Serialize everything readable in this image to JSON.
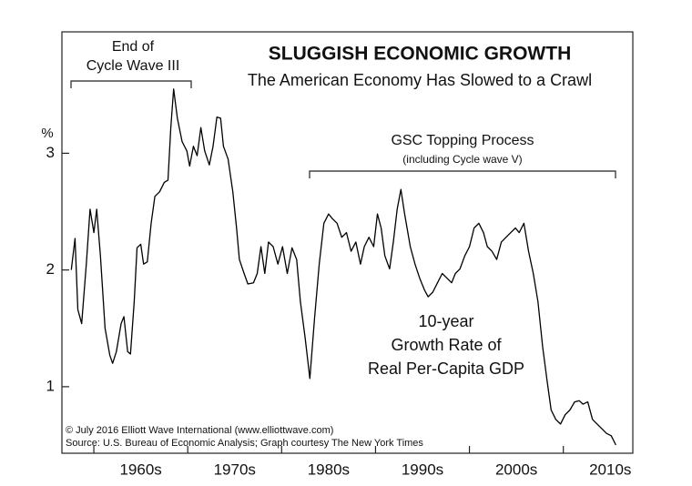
{
  "chart_data": {
    "type": "line",
    "title": "SLUGGISH ECONOMIC GROWTH",
    "subtitle": "The American Economy Has Slowed to a Crawl",
    "y_axis_label": "%",
    "annotations": {
      "wave_end": [
        "End of",
        "Cycle Wave III"
      ],
      "topping": "GSC Topping Process",
      "topping_note": "(including Cycle wave V)",
      "series_label": [
        "10-year",
        "Growth Rate of",
        "Real Per-Capita GDP"
      ],
      "credits": [
        "© July 2016 Elliott Wave International (www.elliottwave.com)",
        "Source: U.S. Bureau of Economic Analysis; Graph courtesy The New York Times"
      ]
    },
    "color": "#000000",
    "xlim": [
      1956.6,
      2017.4
    ],
    "ylim": [
      0.43,
      4.04
    ],
    "yticks": [
      1,
      2,
      3
    ],
    "xticks": [
      {
        "value": 1965,
        "label": "1960s"
      },
      {
        "value": 1975,
        "label": "1970s"
      },
      {
        "value": 1985,
        "label": "1980s"
      },
      {
        "value": 1995,
        "label": "1990s"
      },
      {
        "value": 2005,
        "label": "2000s"
      },
      {
        "value": 2015,
        "label": "2010s"
      }
    ],
    "x_minor_ticks": [
      1960,
      1970,
      1980,
      1990,
      2000,
      2010
    ],
    "x": [
      1957.6,
      1958.0,
      1958.3,
      1958.7,
      1959.2,
      1959.6,
      1960.0,
      1960.3,
      1960.7,
      1961.2,
      1961.7,
      1962.0,
      1962.4,
      1962.9,
      1963.2,
      1963.6,
      1963.9,
      1964.3,
      1964.6,
      1965.0,
      1965.3,
      1965.7,
      1966.1,
      1966.5,
      1967.0,
      1967.5,
      1967.9,
      1968.2,
      1968.5,
      1968.9,
      1969.4,
      1969.9,
      1970.2,
      1970.6,
      1971.0,
      1971.4,
      1971.8,
      1972.3,
      1972.7,
      1973.1,
      1973.5,
      1973.8,
      1974.3,
      1974.8,
      1975.2,
      1975.5,
      1976.0,
      1976.4,
      1977.0,
      1977.4,
      1977.8,
      1978.2,
      1978.6,
      1979.1,
      1979.6,
      1980.1,
      1980.6,
      1981.1,
      1981.6,
      1982.0,
      1982.5,
      1983.0,
      1983.5,
      1984.0,
      1984.5,
      1985.0,
      1985.4,
      1985.9,
      1986.4,
      1986.9,
      1987.4,
      1987.9,
      1988.4,
      1988.8,
      1989.3,
      1989.8,
      1990.2,
      1990.6,
      1991.0,
      1991.5,
      1991.9,
      1992.3,
      1992.7,
      1993.1,
      1993.7,
      1994.2,
      1994.7,
      1995.2,
      1995.6,
      1996.1,
      1996.6,
      1997.1,
      1997.6,
      1998.1,
      1998.5,
      1999.0,
      1999.5,
      2000.0,
      2000.5,
      2001.0,
      2001.5,
      2001.9,
      2002.4,
      2002.9,
      2003.4,
      2003.9,
      2004.4,
      2004.9,
      2005.3,
      2005.8,
      2006.3,
      2006.8,
      2007.3,
      2007.8,
      2008.3,
      2008.7,
      2009.2,
      2009.7,
      2010.2,
      2010.7,
      2011.2,
      2011.7,
      2012.1,
      2012.6,
      2013.1,
      2013.6,
      2014.1,
      2014.6,
      2015.1,
      2015.6
    ],
    "values": [
      2.0,
      2.27,
      1.66,
      1.54,
      2.05,
      2.52,
      2.32,
      2.52,
      2.12,
      1.5,
      1.27,
      1.2,
      1.3,
      1.54,
      1.6,
      1.3,
      1.28,
      1.73,
      2.19,
      2.22,
      2.05,
      2.07,
      2.4,
      2.63,
      2.67,
      2.75,
      2.77,
      3.22,
      3.55,
      3.3,
      3.1,
      3.02,
      2.89,
      3.06,
      2.98,
      3.22,
      3.02,
      2.9,
      3.06,
      3.31,
      3.3,
      3.06,
      2.95,
      2.67,
      2.36,
      2.09,
      1.97,
      1.88,
      1.89,
      1.97,
      2.2,
      1.97,
      2.24,
      2.2,
      2.05,
      2.2,
      1.97,
      2.19,
      2.09,
      1.73,
      1.42,
      1.07,
      1.58,
      2.05,
      2.4,
      2.48,
      2.44,
      2.4,
      2.28,
      2.32,
      2.16,
      2.24,
      2.05,
      2.2,
      2.28,
      2.2,
      2.48,
      2.36,
      2.12,
      2.01,
      2.24,
      2.52,
      2.69,
      2.48,
      2.2,
      2.05,
      1.93,
      1.83,
      1.77,
      1.81,
      1.89,
      1.97,
      1.93,
      1.89,
      1.97,
      2.01,
      2.12,
      2.2,
      2.36,
      2.4,
      2.32,
      2.2,
      2.16,
      2.09,
      2.24,
      2.28,
      2.32,
      2.36,
      2.32,
      2.4,
      2.16,
      1.97,
      1.73,
      1.34,
      1.03,
      0.8,
      0.72,
      0.68,
      0.76,
      0.8,
      0.87,
      0.88,
      0.85,
      0.87,
      0.72,
      0.68,
      0.64,
      0.6,
      0.58,
      0.5
    ]
  }
}
